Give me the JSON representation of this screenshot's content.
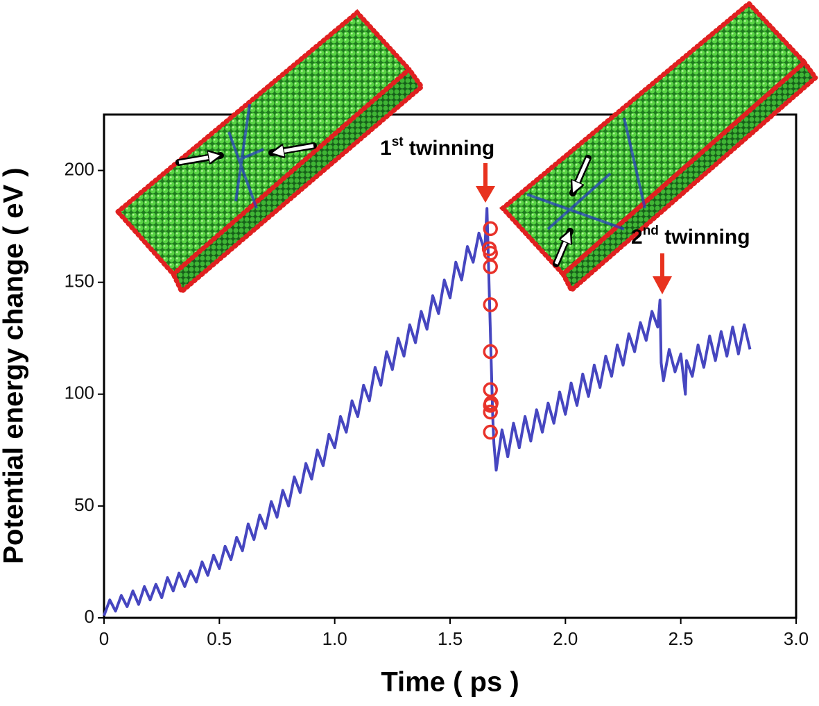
{
  "chart_data": {
    "type": "line",
    "x_label": "Time ( ps )",
    "y_label": "Potential energy change ( eV )",
    "xlim": [
      0,
      3
    ],
    "ylim": [
      0,
      225
    ],
    "xticks": [
      0,
      0.5,
      {
        "value": 1,
        "label": "1.0"
      },
      1.5,
      {
        "value": 2,
        "label": "2.0"
      },
      2.5,
      {
        "value": 3,
        "label": "3.0"
      }
    ],
    "yticks": [
      0,
      50,
      100,
      150,
      200
    ],
    "series": [
      {
        "mode": "line",
        "color": "#4646c0",
        "x": [
          0,
          0.025,
          0.05,
          0.075,
          0.1,
          0.125,
          0.15,
          0.175,
          0.2,
          0.225,
          0.25,
          0.275,
          0.3,
          0.325,
          0.35,
          0.375,
          0.4,
          0.425,
          0.45,
          0.475,
          0.5,
          0.525,
          0.55,
          0.575,
          0.6,
          0.625,
          0.65,
          0.675,
          0.7,
          0.725,
          0.75,
          0.775,
          0.8,
          0.825,
          0.85,
          0.875,
          0.9,
          0.925,
          0.95,
          0.975,
          1.0,
          1.025,
          1.05,
          1.075,
          1.1,
          1.125,
          1.15,
          1.175,
          1.2,
          1.225,
          1.25,
          1.275,
          1.3,
          1.325,
          1.35,
          1.375,
          1.4,
          1.425,
          1.45,
          1.475,
          1.5,
          1.525,
          1.55,
          1.575,
          1.6,
          1.625,
          1.65,
          1.66,
          1.685,
          1.69,
          1.7,
          1.725,
          1.75,
          1.775,
          1.8,
          1.825,
          1.85,
          1.875,
          1.9,
          1.925,
          1.95,
          1.975,
          2.0,
          2.025,
          2.05,
          2.075,
          2.1,
          2.125,
          2.15,
          2.175,
          2.2,
          2.225,
          2.25,
          2.275,
          2.3,
          2.325,
          2.35,
          2.375,
          2.4,
          2.41,
          2.415,
          2.425,
          2.45,
          2.475,
          2.5,
          2.52,
          2.525,
          2.55,
          2.575,
          2.6,
          2.625,
          2.65,
          2.675,
          2.7,
          2.725,
          2.75,
          2.775,
          2.8
        ],
        "values": [
          1,
          8,
          3,
          10,
          5,
          12,
          6,
          14,
          8,
          15,
          9,
          18,
          12,
          20,
          14,
          21,
          16,
          25,
          19,
          28,
          22,
          32,
          26,
          36,
          30,
          42,
          35,
          46,
          40,
          52,
          45,
          57,
          50,
          63,
          56,
          69,
          62,
          75,
          68,
          82,
          76,
          90,
          83,
          97,
          90,
          104,
          97,
          112,
          104,
          119,
          111,
          125,
          117,
          131,
          123,
          137,
          129,
          144,
          136,
          151,
          143,
          159,
          151,
          166,
          159,
          172,
          164,
          183,
          90,
          78,
          66,
          84,
          72,
          87,
          76,
          90,
          79,
          93,
          83,
          96,
          87,
          101,
          91,
          105,
          95,
          109,
          99,
          113,
          103,
          117,
          108,
          122,
          113,
          127,
          119,
          132,
          124,
          137,
          130,
          142,
          114,
          106,
          120,
          110,
          118,
          100,
          115,
          108,
          122,
          112,
          126,
          115,
          128,
          117,
          130,
          118,
          131,
          120
        ]
      },
      {
        "mode": "markers",
        "color": "#e8322a",
        "x": [
          1.675,
          1.67,
          1.675,
          1.675,
          1.675,
          1.675,
          1.675,
          1.678,
          1.675,
          1.675,
          1.675
        ],
        "values": [
          174,
          165,
          163,
          157,
          140,
          119,
          102,
          96,
          95,
          92,
          83
        ]
      }
    ],
    "annotations": [
      {
        "text": "1",
        "sup": "st",
        "tail": " twinning"
      },
      {
        "text": "2",
        "sup": "nd",
        "tail": " twinning"
      }
    ]
  }
}
